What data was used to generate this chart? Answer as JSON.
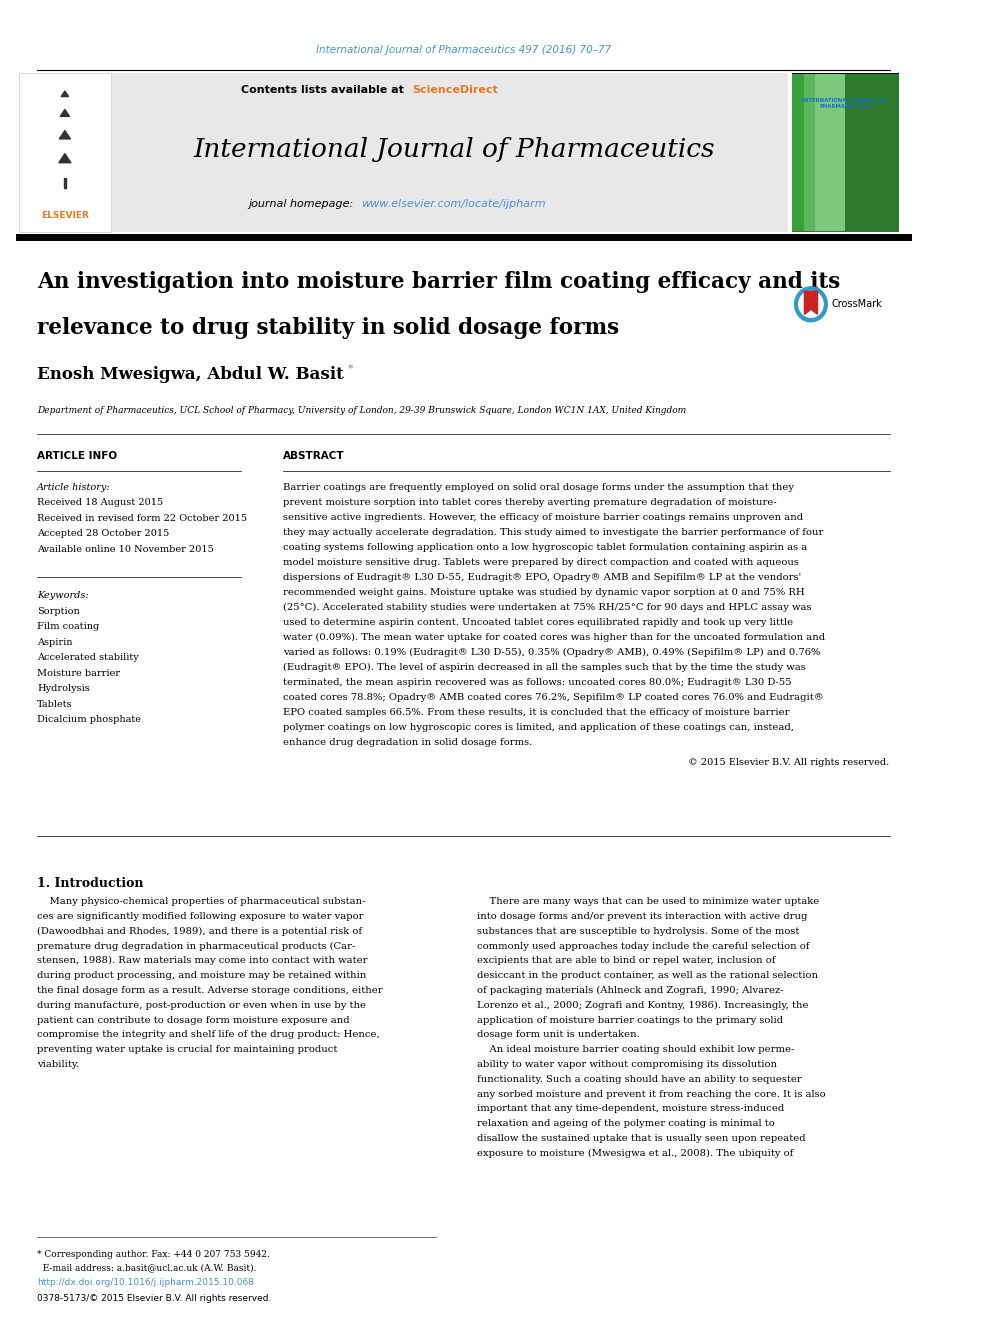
{
  "page_width": 9.92,
  "page_height": 13.23,
  "background_color": "#ffffff",
  "top_citation": "International Journal of Pharmaceutics 497 (2016) 70–77",
  "top_citation_color": "#4a90d9",
  "header_bg": "#e8e8e8",
  "header_text": "Contents lists available at",
  "header_sciencedirect": "ScienceDirect",
  "header_sciencedirect_color": "#e87722",
  "journal_title": "International Journal of Pharmaceutics",
  "journal_homepage_prefix": "journal homepage: ",
  "journal_homepage_url": "www.elsevier.com/locate/ijpharm",
  "journal_homepage_color": "#4a90d9",
  "article_title_line1": "An investigation into moisture barrier film coating efficacy and its",
  "article_title_line2": "relevance to drug stability in solid dosage forms",
  "authors": "Enosh Mwesigwa, Abdul W. Basit",
  "affiliation": "Department of Pharmaceutics, UCL School of Pharmacy, University of London, 29-39 Brunswick Square, London WC1N 1AX, United Kingdom",
  "section_article_info": "ARTICLE INFO",
  "section_abstract": "ABSTRACT",
  "article_history_title": "Article history:",
  "article_history": [
    "Received 18 August 2015",
    "Received in revised form 22 October 2015",
    "Accepted 28 October 2015",
    "Available online 10 November 2015"
  ],
  "keywords_title": "Keywords:",
  "keywords": [
    "Sorption",
    "Film coating",
    "Aspirin",
    "Accelerated stability",
    "Moisture barrier",
    "Hydrolysis",
    "Tablets",
    "Dicalcium phosphate"
  ],
  "abstract_lines": [
    "Barrier coatings are frequently employed on solid oral dosage forms under the assumption that they",
    "prevent moisture sorption into tablet cores thereby averting premature degradation of moisture-",
    "sensitive active ingredients. However, the efficacy of moisture barrier coatings remains unproven and",
    "they may actually accelerate degradation. This study aimed to investigate the barrier performance of four",
    "coating systems following application onto a low hygroscopic tablet formulation containing aspirin as a",
    "model moisture sensitive drug. Tablets were prepared by direct compaction and coated with aqueous",
    "dispersions of Eudragit® L30 D-55, Eudragit® EPO, Opadry® AMB and Sepifilm® LP at the vendors'",
    "recommended weight gains. Moisture uptake was studied by dynamic vapor sorption at 0 and 75% RH",
    "(25°C). Accelerated stability studies were undertaken at 75% RH/25°C for 90 days and HPLC assay was",
    "used to determine aspirin content. Uncoated tablet cores equilibrated rapidly and took up very little",
    "water (0.09%). The mean water uptake for coated cores was higher than for the uncoated formulation and",
    "varied as follows: 0.19% (Eudragit® L30 D-55), 0.35% (Opadry® AMB), 0.49% (Sepifilm® LP) and 0.76%",
    "(Eudragit® EPO). The level of aspirin decreased in all the samples such that by the time the study was",
    "terminated, the mean aspirin recovered was as follows: uncoated cores 80.0%; Eudragit® L30 D-55",
    "coated cores 78.8%; Opadry® AMB coated cores 76.2%, Sepifilm® LP coated cores 76.0% and Eudragit®",
    "EPO coated samples 66.5%. From these results, it is concluded that the efficacy of moisture barrier",
    "polymer coatings on low hygroscopic cores is limited, and application of these coatings can, instead,",
    "enhance drug degradation in solid dosage forms."
  ],
  "copyright_text": "© 2015 Elsevier B.V. All rights reserved.",
  "intro_heading": "1. Introduction",
  "intro_left_lines": [
    "    Many physico-chemical properties of pharmaceutical substan-",
    "ces are significantly modified following exposure to water vapor",
    "(Dawoodbhai and Rhodes, 1989), and there is a potential risk of",
    "premature drug degradation in pharmaceutical products (Car-",
    "stensen, 1988). Raw materials may come into contact with water",
    "during product processing, and moisture may be retained within",
    "the final dosage form as a result. Adverse storage conditions, either",
    "during manufacture, post-production or even when in use by the",
    "patient can contribute to dosage form moisture exposure and",
    "compromise the integrity and shelf life of the drug product: Hence,",
    "preventing water uptake is crucial for maintaining product",
    "viability."
  ],
  "intro_right_lines": [
    "    There are many ways that can be used to minimize water uptake",
    "into dosage forms and/or prevent its interaction with active drug",
    "substances that are susceptible to hydrolysis. Some of the most",
    "commonly used approaches today include the careful selection of",
    "excipients that are able to bind or repel water, inclusion of",
    "desiccant in the product container, as well as the rational selection",
    "of packaging materials (Ahlneck and Zografi, 1990; Alvarez-",
    "Lorenzo et al., 2000; Zografi and Kontny, 1986). Increasingly, the",
    "application of moisture barrier coatings to the primary solid",
    "dosage form unit is undertaken.",
    "    An ideal moisture barrier coating should exhibit low perme-",
    "ability to water vapor without compromising its dissolution",
    "functionality. Such a coating should have an ability to sequester",
    "any sorbed moisture and prevent it from reaching the core. It is also",
    "important that any time-dependent, moisture stress-induced",
    "relaxation and ageing of the polymer coating is minimal to",
    "disallow the sustained uptake that is usually seen upon repeated",
    "exposure to moisture (Mwesigwa et al., 2008). The ubiquity of"
  ],
  "footer_fn1": "* Corresponding author. Fax: +44 0 207 753 5942.",
  "footer_fn2": "  E-mail address: a.basit@ucl.ac.uk (A.W. Basit).",
  "footer_doi": "http://dx.doi.org/10.1016/j.ijpharm.2015.10.068",
  "footer_issn": "0378-5173/© 2015 Elsevier B.V. All rights reserved.",
  "link_color": "#4a90d9",
  "text_color": "#1a1a1a"
}
